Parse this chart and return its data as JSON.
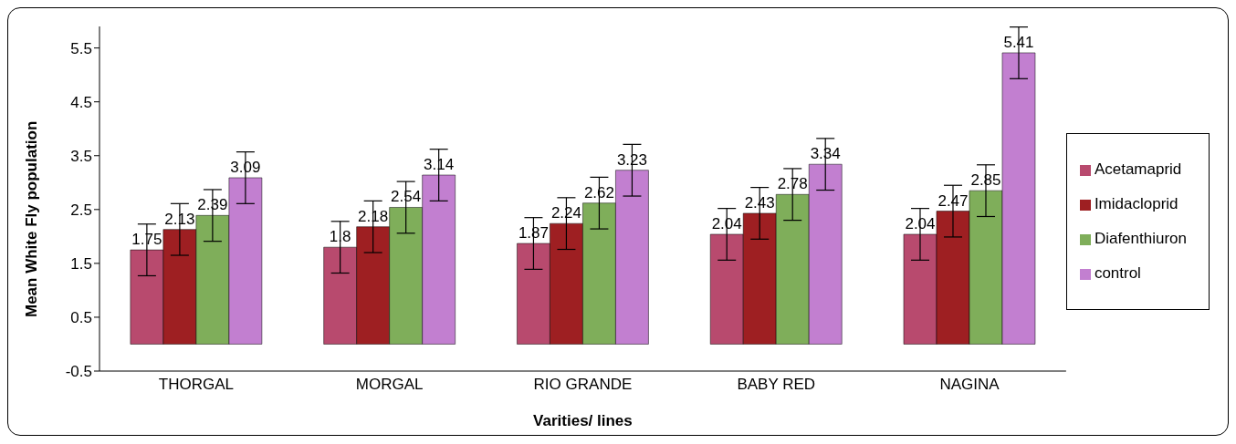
{
  "chart_data": {
    "type": "bar",
    "xlabel": "Varities/ lines",
    "ylabel": "Mean White Fly population",
    "categories": [
      "THORGAL",
      "MORGAL",
      "RIO GRANDE",
      "BABY RED",
      "NAGINA"
    ],
    "series": [
      {
        "name": "Acetamaprid",
        "color": "#b84a6e",
        "values": [
          1.75,
          1.8,
          1.87,
          2.04,
          2.04
        ],
        "errors": [
          0.48,
          0.48,
          0.48,
          0.48,
          0.48
        ]
      },
      {
        "name": "Imidacloprid",
        "color": "#9e1f22",
        "values": [
          2.13,
          2.18,
          2.24,
          2.43,
          2.47
        ],
        "errors": [
          0.48,
          0.48,
          0.48,
          0.48,
          0.48
        ]
      },
      {
        "name": "Diafenthiuron",
        "color": "#7fae5a",
        "values": [
          2.39,
          2.54,
          2.62,
          2.78,
          2.85
        ],
        "errors": [
          0.48,
          0.48,
          0.48,
          0.48,
          0.48
        ]
      },
      {
        "name": "control",
        "color": "#c27fd0",
        "values": [
          3.09,
          3.14,
          3.23,
          3.34,
          5.41
        ],
        "errors": [
          0.48,
          0.48,
          0.48,
          0.48,
          0.48
        ]
      }
    ],
    "ylim": [
      -0.5,
      5.9
    ],
    "yticks": [
      -0.5,
      0.5,
      1.5,
      2.5,
      3.5,
      4.5,
      5.5
    ],
    "grid": false,
    "legend": "right",
    "data_labels": true
  }
}
